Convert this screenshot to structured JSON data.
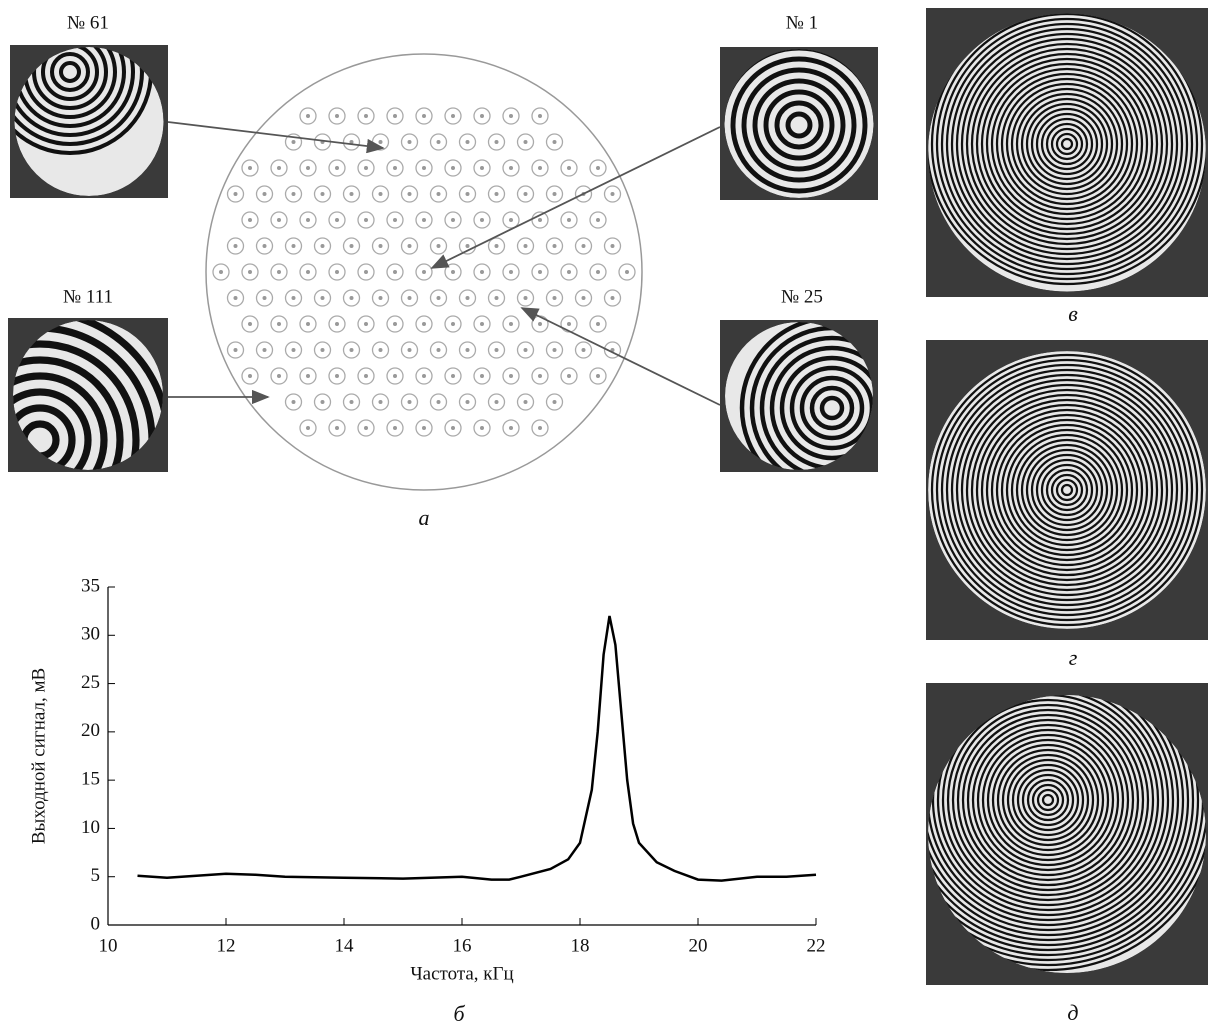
{
  "panels": {
    "thumb_61": "№ 61",
    "thumb_1": "№ 1",
    "thumb_111": "№ 111",
    "thumb_25": "№ 25",
    "label_a": "а",
    "label_b": "б",
    "label_v": "в",
    "label_g": "г",
    "label_d": "д"
  },
  "chart_data": {
    "type": "line",
    "xlabel": "Частота, кГц",
    "ylabel": "Выходной сигнал, мВ",
    "color": "#000000",
    "x": [
      10.5,
      11,
      11.5,
      12,
      12.5,
      13,
      14,
      15,
      16,
      16.5,
      16.8,
      17,
      17.5,
      17.8,
      18,
      18.2,
      18.3,
      18.4,
      18.5,
      18.6,
      18.7,
      18.8,
      18.9,
      19,
      19.3,
      19.6,
      20,
      20.4,
      21,
      21.5,
      22
    ],
    "values": [
      5.1,
      4.9,
      5.1,
      5.3,
      5.2,
      5.0,
      4.9,
      4.8,
      5.0,
      4.7,
      4.7,
      5.0,
      5.8,
      6.8,
      8.5,
      14,
      20,
      28,
      32,
      29,
      22,
      15,
      10.5,
      8.5,
      6.5,
      5.6,
      4.7,
      4.6,
      5.0,
      5.0,
      5.2
    ],
    "xlim": [
      10,
      22
    ],
    "ylim": [
      0,
      35
    ],
    "xticks": [
      10,
      12,
      14,
      16,
      18,
      20,
      22
    ],
    "yticks": [
      0,
      5,
      10,
      15,
      20,
      25,
      30,
      35
    ]
  }
}
